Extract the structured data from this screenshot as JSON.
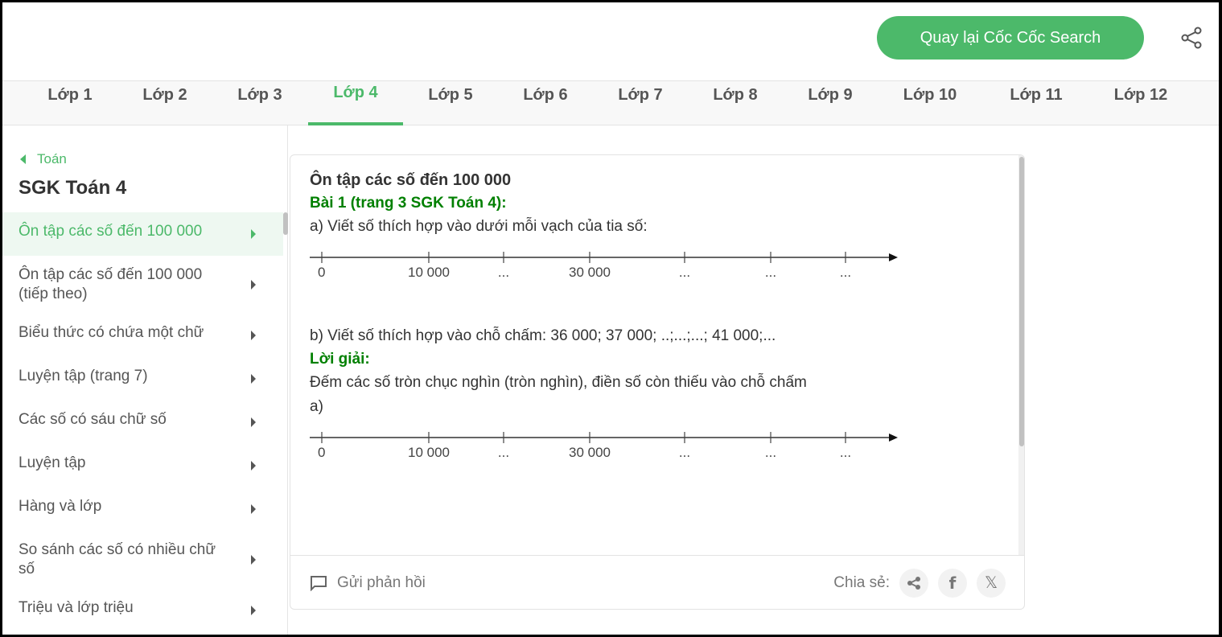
{
  "header": {
    "back_label": "Quay lại Cốc Cốc Search"
  },
  "tabs": [
    "Lớp 1",
    "Lớp 2",
    "Lớp 3",
    "Lớp 4",
    "Lớp 5",
    "Lớp 6",
    "Lớp 7",
    "Lớp 8",
    "Lớp 9",
    "Lớp 10",
    "Lớp 11",
    "Lớp 12"
  ],
  "active_tab": "Lớp 4",
  "sidebar": {
    "back": "Toán",
    "title": "SGK Toán 4",
    "items": [
      "Ôn tập các số đến 100 000",
      "Ôn tập các số đến 100 000 (tiếp theo)",
      "Biểu thức có chứa một chữ",
      "Luyện tập (trang 7)",
      "Các số có sáu chữ số",
      "Luyện tập",
      "Hàng và lớp",
      "So sánh các số có nhiều chữ số",
      "Triệu và lớp triệu"
    ]
  },
  "content": {
    "title": "Ôn tập các số đến 100 000",
    "exercise": "Bài 1 (trang 3 SGK Toán 4):",
    "qa": "a) Viết số thích hợp vào dưới mỗi vạch của tia số:",
    "qb": "b) Viết số thích hợp vào chỗ chấm: 36 000; 37 000; ..;...;...; 41 000;...",
    "solution": "Lời giải:",
    "explain": "Đếm các số tròn chục nghìn (tròn nghìn), điền số còn thiếu vào chỗ chấm",
    "sa": "a)",
    "number_line_labels": [
      "0",
      "10 000",
      "...",
      "30 000",
      "...",
      "...",
      "..."
    ]
  },
  "footer": {
    "feedback": "Gửi phản hồi",
    "share": "Chia sẻ:"
  },
  "colors": {
    "accent": "#4cb96a",
    "green_text": "#008000"
  }
}
